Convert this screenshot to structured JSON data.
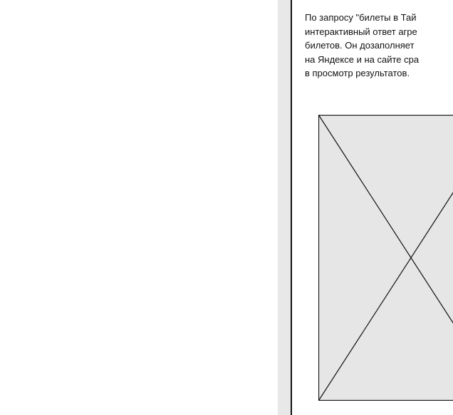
{
  "description": {
    "lines": [
      "По запросу \"билеты в Тай",
      "интерактивный ответ агре",
      "билетов. Он дозаполняет",
      "на Яндексе и на сайте сра",
      "в просмотр результатов."
    ]
  },
  "image": {
    "icon": "image-placeholder-icon",
    "fill": "#e6e6e6",
    "stroke": "#111111"
  }
}
